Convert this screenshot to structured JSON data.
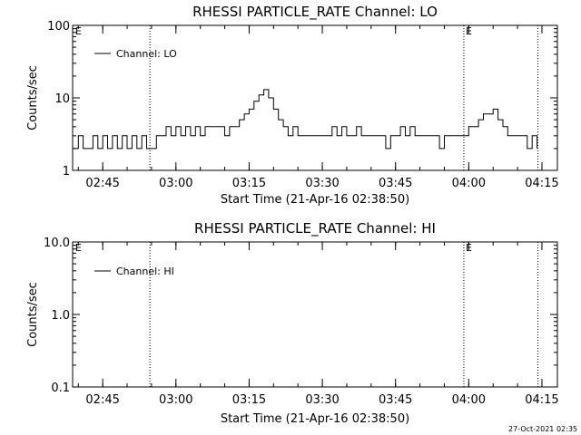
{
  "footer": {
    "date_stamp": "27-Oct-2021 02:35"
  },
  "chart_data": [
    {
      "type": "line",
      "title": "RHESSI PARTICLE_RATE Channel: LO",
      "xlabel": "Start Time (21-Apr-16 02:38:50)",
      "ylabel": "Counts/sec",
      "yscale": "log",
      "xlim": [
        "02:38:50",
        "04:18:10"
      ],
      "ylim": [
        1,
        100
      ],
      "xticks": [
        "02:45",
        "03:00",
        "03:15",
        "03:30",
        "03:45",
        "04:00",
        "04:15"
      ],
      "yticks": [
        "1",
        "10",
        "100"
      ],
      "grid": false,
      "legend": "top-left",
      "series": [
        {
          "name": "Channel: LO",
          "x": [
            "02:39:00",
            "02:40:00",
            "02:41:00",
            "02:42:00",
            "02:43:00",
            "02:44:00",
            "02:45:00",
            "02:46:00",
            "02:47:00",
            "02:48:00",
            "02:49:00",
            "02:50:00",
            "02:51:00",
            "02:52:00",
            "02:53:00",
            "02:54:00",
            "02:55:00",
            "02:56:00",
            "02:57:00",
            "02:58:00",
            "02:59:00",
            "03:00:00",
            "03:01:00",
            "03:02:00",
            "03:03:00",
            "03:04:00",
            "03:05:00",
            "03:06:00",
            "03:07:00",
            "03:08:00",
            "03:09:00",
            "03:10:00",
            "03:11:00",
            "03:12:00",
            "03:13:00",
            "03:14:00",
            "03:15:00",
            "03:16:00",
            "03:17:00",
            "03:18:00",
            "03:19:00",
            "03:20:00",
            "03:21:00",
            "03:22:00",
            "03:23:00",
            "03:24:00",
            "03:25:00",
            "03:26:00",
            "03:27:00",
            "03:28:00",
            "03:29:00",
            "03:30:00",
            "03:31:00",
            "03:32:00",
            "03:33:00",
            "03:34:00",
            "03:35:00",
            "03:36:00",
            "03:37:00",
            "03:38:00",
            "03:39:00",
            "03:40:00",
            "03:41:00",
            "03:42:00",
            "03:43:00",
            "03:44:00",
            "03:45:00",
            "03:46:00",
            "03:47:00",
            "03:48:00",
            "03:49:00",
            "03:50:00",
            "03:51:00",
            "03:52:00",
            "03:53:00",
            "03:54:00",
            "03:55:00",
            "03:56:00",
            "03:57:00",
            "03:58:00",
            "03:59:00",
            "04:00:00",
            "04:01:00",
            "04:02:00",
            "04:03:00",
            "04:04:00",
            "04:05:00",
            "04:06:00",
            "04:07:00",
            "04:08:00",
            "04:09:00",
            "04:10:00",
            "04:11:00",
            "04:12:00",
            "04:13:00",
            "04:14:00"
          ],
          "values": [
            2,
            3,
            2,
            2,
            3,
            2,
            3,
            2,
            3,
            2,
            3,
            2,
            3,
            2,
            3,
            2,
            2,
            3,
            3,
            4,
            3,
            4,
            3,
            4,
            3,
            4,
            3,
            4,
            4,
            4,
            4,
            3,
            4,
            4,
            5,
            6,
            7,
            9,
            11,
            13,
            10,
            7,
            5,
            4,
            3,
            4,
            3,
            3,
            3,
            3,
            3,
            3,
            3,
            4,
            3,
            4,
            3,
            3,
            4,
            3,
            3,
            3,
            3,
            3,
            2,
            3,
            3,
            4,
            3,
            4,
            3,
            3,
            3,
            3,
            3,
            2,
            3,
            3,
            3,
            3,
            3,
            4,
            4,
            5,
            6,
            6,
            7,
            5,
            4,
            3,
            3,
            3,
            3,
            2,
            3,
            2
          ]
        }
      ],
      "annotations": [
        {
          "time": "02:54:40",
          "label": ""
        },
        {
          "time": "03:59:00",
          "label": "E"
        },
        {
          "time": "04:14:10",
          "label": ""
        },
        {
          "time": "02:39:00",
          "label": "E"
        }
      ]
    },
    {
      "type": "line",
      "title": "RHESSI PARTICLE_RATE Channel: HI",
      "xlabel": "Start Time (21-Apr-16 02:38:50)",
      "ylabel": "Counts/sec",
      "yscale": "log",
      "xlim": [
        "02:38:50",
        "04:18:10"
      ],
      "ylim": [
        0.1,
        10
      ],
      "xticks": [
        "02:45",
        "03:00",
        "03:15",
        "03:30",
        "03:45",
        "04:00",
        "04:15"
      ],
      "yticks": [
        "0.1",
        "1.0",
        "10.0"
      ],
      "grid": false,
      "legend": "top-left",
      "series": [
        {
          "name": "Channel: HI",
          "x": [],
          "values": []
        }
      ],
      "annotations": [
        {
          "time": "02:54:40",
          "label": ""
        },
        {
          "time": "03:59:00",
          "label": "E"
        },
        {
          "time": "04:14:10",
          "label": ""
        },
        {
          "time": "02:39:00",
          "label": "E"
        }
      ]
    }
  ]
}
